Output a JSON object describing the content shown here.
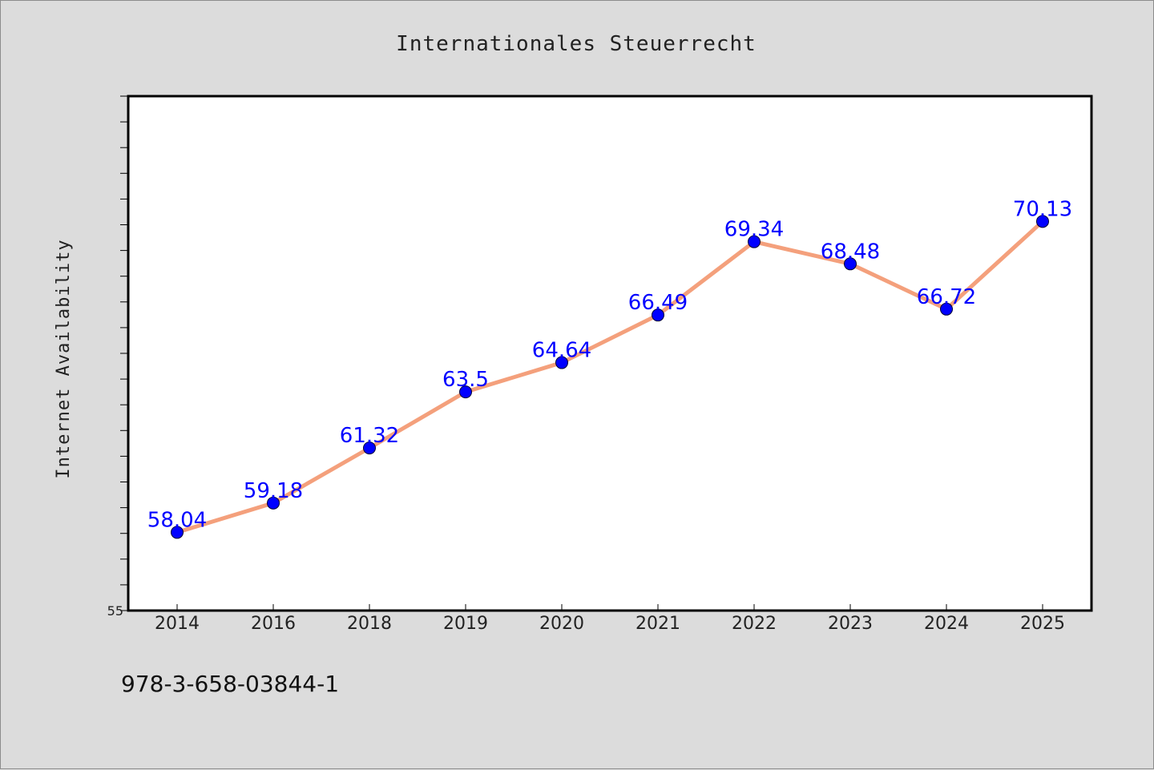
{
  "chart_data": {
    "type": "line",
    "title": "Internationales Steuerrecht",
    "xlabel": "",
    "ylabel": "Internet Availability",
    "categories": [
      "2014",
      "2016",
      "2018",
      "2019",
      "2020",
      "2021",
      "2022",
      "2023",
      "2024",
      "2025"
    ],
    "series": [
      {
        "values": [
          58.04,
          59.18,
          61.32,
          63.5,
          64.64,
          66.49,
          69.34,
          68.48,
          66.72,
          70.13
        ],
        "data_labels": [
          "58.04",
          "59.18",
          "61.32",
          "63.5",
          "64.64",
          "66.49",
          "69.34",
          "68.48",
          "66.72",
          "70.13"
        ],
        "line_color": "#f4a07c",
        "marker_color": "#0000ff"
      }
    ],
    "ylim": [
      55,
      75
    ],
    "y_tick_labels": [
      "55"
    ],
    "y_minor_ticks_per_unit": 1,
    "grid": false,
    "legend": "none",
    "data_label_color": "#0000ff"
  },
  "footer": {
    "isbn": "978-3-658-03844-1"
  }
}
